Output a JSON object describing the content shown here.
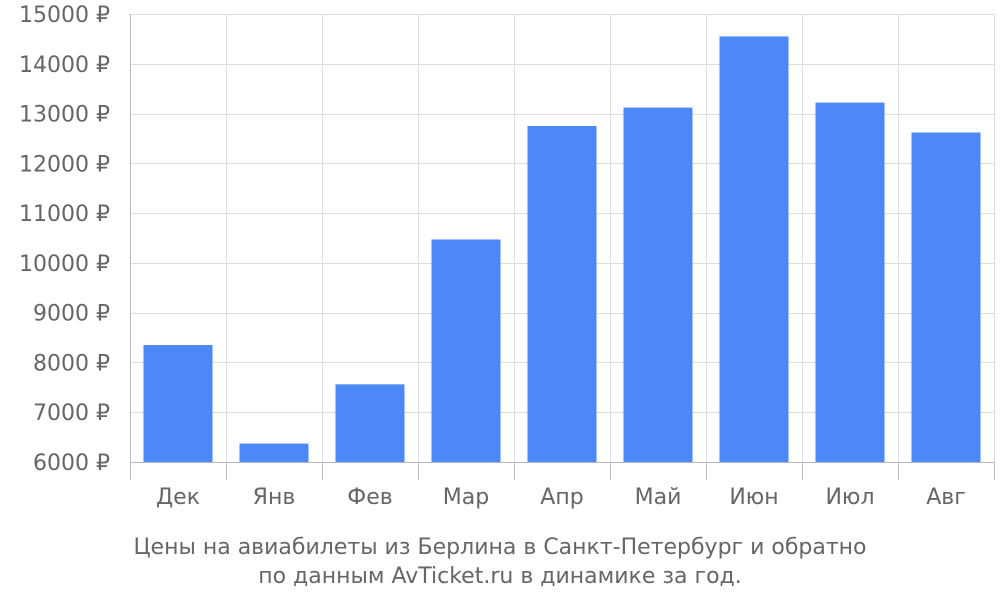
{
  "chart_data": {
    "type": "bar",
    "categories": [
      "Дек",
      "Янв",
      "Фев",
      "Мар",
      "Апр",
      "Май",
      "Июн",
      "Июл",
      "Авг"
    ],
    "values": [
      8350,
      6370,
      7560,
      10470,
      12750,
      13120,
      14550,
      13220,
      12620
    ],
    "ylim": [
      6000,
      15000
    ],
    "yticks": [
      6000,
      7000,
      8000,
      9000,
      10000,
      11000,
      12000,
      13000,
      14000,
      15000
    ],
    "ytick_labels": [
      "6000 ₽",
      "7000 ₽",
      "8000 ₽",
      "9000 ₽",
      "10000 ₽",
      "11000 ₽",
      "12000 ₽",
      "13000 ₽",
      "14000 ₽",
      "15000 ₽"
    ],
    "grid": true,
    "colors": {
      "bar": "#4d88f7",
      "grid": "#dddddd",
      "axis": "#bbbbbb",
      "text": "#666666"
    }
  },
  "caption": {
    "line1": "Цены на авиабилеты из Берлина в Санкт-Петербург и обратно",
    "line2": "по данным AvTicket.ru в динамике за год."
  }
}
